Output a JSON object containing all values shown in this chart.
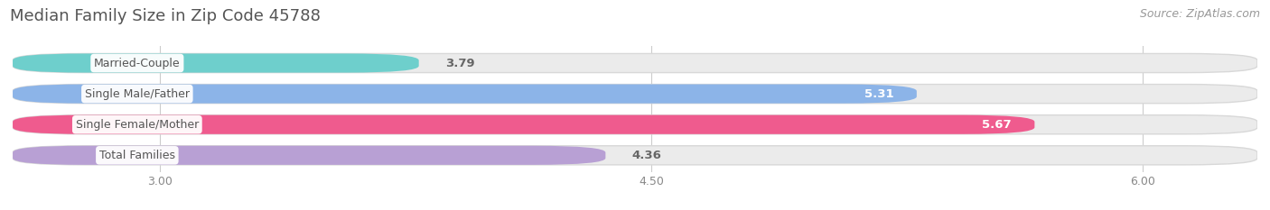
{
  "title": "Median Family Size in Zip Code 45788",
  "source": "Source: ZipAtlas.com",
  "categories": [
    "Married-Couple",
    "Single Male/Father",
    "Single Female/Mother",
    "Total Families"
  ],
  "values": [
    3.79,
    5.31,
    5.67,
    4.36
  ],
  "bar_colors": [
    "#6ecfcc",
    "#8cb4e8",
    "#ef5b8e",
    "#b8a0d4"
  ],
  "bar_bg_color": "#ebebeb",
  "bg_color": "#ffffff",
  "xlim_min": 2.55,
  "xlim_max": 6.35,
  "xticks": [
    3.0,
    4.5,
    6.0
  ],
  "xtick_labels": [
    "3.00",
    "4.50",
    "6.00"
  ],
  "title_fontsize": 13,
  "source_fontsize": 9,
  "bar_label_fontsize": 9.5,
  "category_fontsize": 9,
  "tick_fontsize": 9,
  "bar_height": 0.62,
  "figsize": [
    14.06,
    2.33
  ],
  "dpi": 100,
  "grid_color": "#cccccc",
  "rounding_size": 0.22
}
